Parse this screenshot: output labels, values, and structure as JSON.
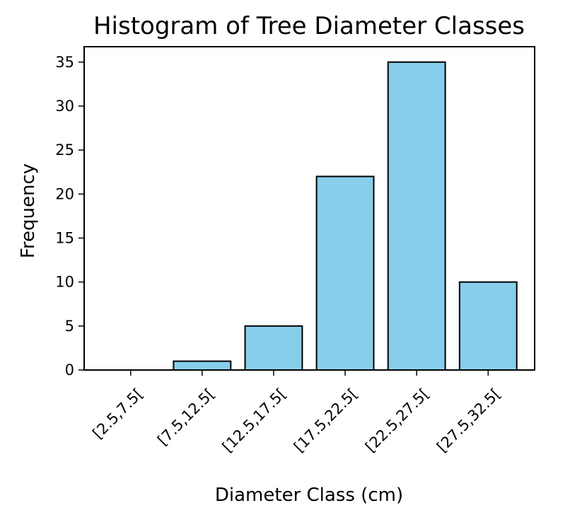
{
  "chart_data": {
    "type": "bar",
    "title": "Histogram of Tree Diameter Classes",
    "xlabel": "Diameter Class (cm)",
    "ylabel": "Frequency",
    "categories": [
      "[2.5,7.5[",
      "[7.5,12.5[",
      "[12.5,17.5[",
      "[17.5,22.5[",
      "[22.5,27.5[",
      "[27.5,32.5["
    ],
    "values": [
      0,
      1,
      5,
      22,
      35,
      10
    ],
    "ylim": [
      0,
      36.75
    ],
    "yticks": [
      0,
      5,
      10,
      15,
      20,
      25,
      30,
      35
    ],
    "grid": false,
    "bar_color": "#87ceeb",
    "edge_color": "#000000"
  }
}
